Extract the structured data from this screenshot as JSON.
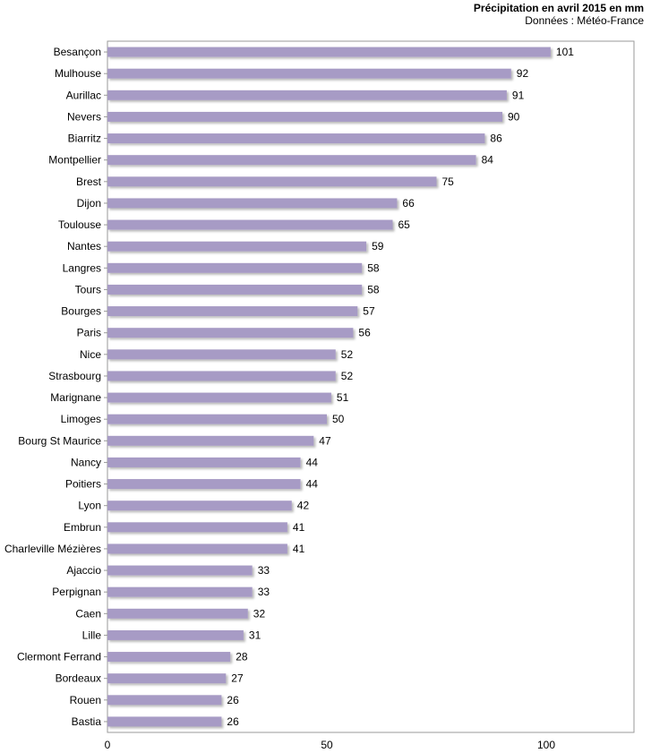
{
  "chart_data": {
    "type": "bar",
    "orientation": "horizontal",
    "title": "Précipitation en avril 2015 en mm",
    "subtitle": "Données : Météo-France",
    "xlabel": "",
    "ylabel": "",
    "xlim": [
      0,
      120
    ],
    "xticks": [
      0,
      50,
      100
    ],
    "grid": false,
    "bar_color": "#a79bc5",
    "categories": [
      "Besançon",
      "Mulhouse",
      "Aurillac",
      "Nevers",
      "Biarritz",
      "Montpellier",
      "Brest",
      "Dijon",
      "Toulouse",
      "Nantes",
      "Langres",
      "Tours",
      "Bourges",
      "Paris",
      "Nice",
      "Strasbourg",
      "Marignane",
      "Limoges",
      "Bourg St Maurice",
      "Nancy",
      "Poitiers",
      "Lyon",
      "Embrun",
      "Charleville Mézières",
      "Ajaccio",
      "Perpignan",
      "Caen",
      "Lille",
      "Clermont Ferrand",
      "Bordeaux",
      "Rouen",
      "Bastia"
    ],
    "values": [
      101,
      92,
      91,
      90,
      86,
      84,
      75,
      66,
      65,
      59,
      58,
      58,
      57,
      56,
      52,
      52,
      51,
      50,
      47,
      44,
      44,
      42,
      41,
      41,
      33,
      33,
      32,
      31,
      28,
      27,
      26,
      26
    ]
  }
}
